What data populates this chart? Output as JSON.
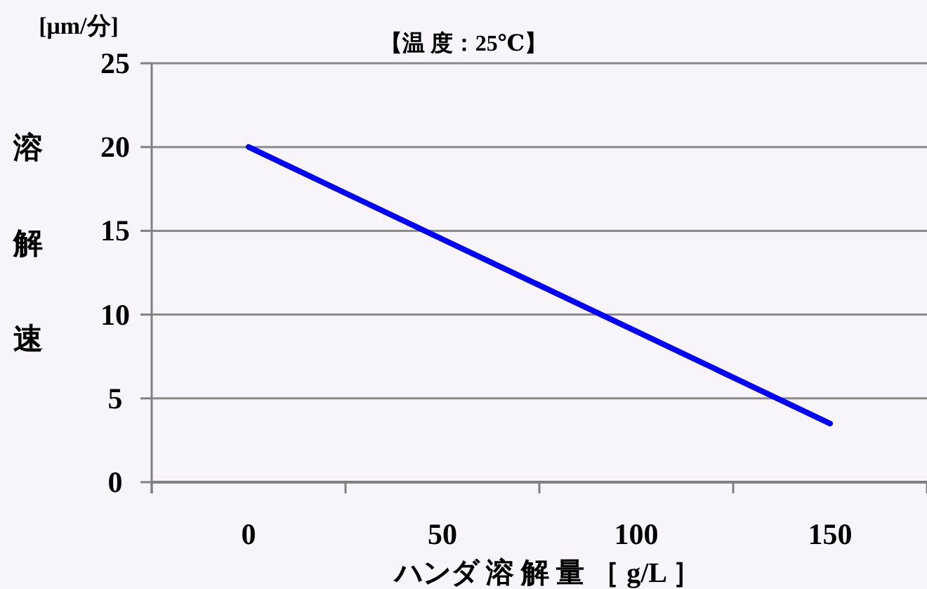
{
  "chart_data": {
    "type": "line",
    "title": "【温 度：25℃】",
    "xlabel": "ハンダ 溶 解 量 ［ g/L ］",
    "ylabel": "溶解速",
    "annotations": [
      "[μm/分]"
    ],
    "categories": [
      "0",
      "50",
      "100",
      "150"
    ],
    "series": [
      {
        "color": "#0000ff",
        "values": [
          20,
          14.5,
          9,
          3.5
        ]
      }
    ],
    "ylim": [
      0,
      25
    ],
    "yticks": [
      0,
      5,
      10,
      15,
      20,
      25
    ],
    "grid": "y",
    "marker": "none",
    "line_style": "solid"
  }
}
